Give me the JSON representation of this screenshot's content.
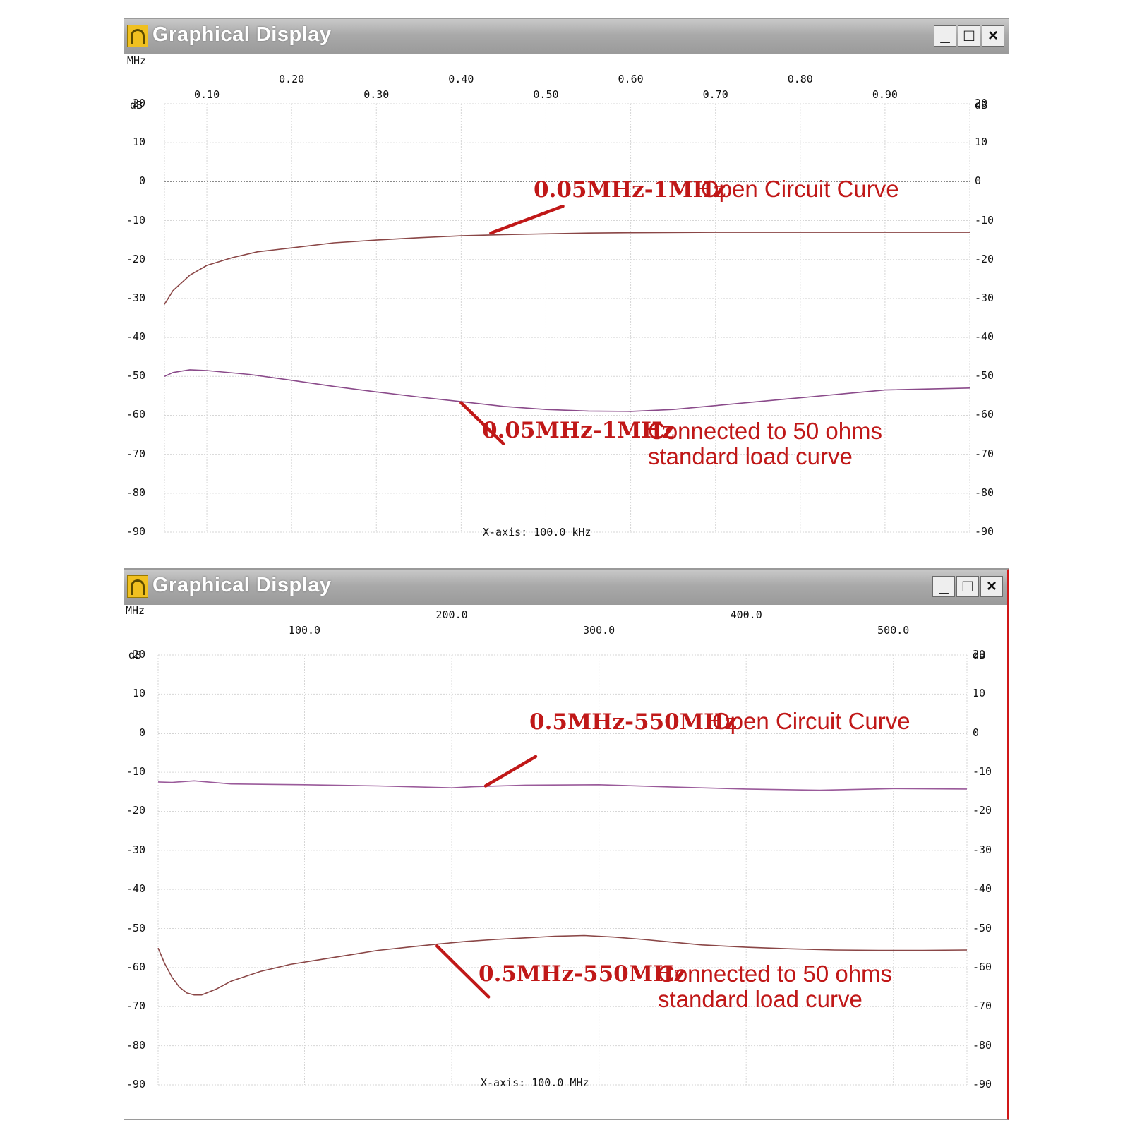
{
  "chart_data": [
    {
      "type": "line",
      "title": "Graphical Display",
      "x_unit": "MHz",
      "x_range": [
        0.05,
        1.0
      ],
      "xticks_top": [
        "0.20",
        "0.40",
        "0.60",
        "0.80"
      ],
      "xticks_bottom": [
        "0.10",
        "0.30",
        "0.50",
        "0.70",
        "0.90"
      ],
      "ylabel": "dB",
      "ylim": [
        -90,
        20
      ],
      "yticks": [
        "20",
        "10",
        "0",
        "-10",
        "-20",
        "-30",
        "-40",
        "-50",
        "-60",
        "-70",
        "-80",
        "-90"
      ],
      "xaxis_caption": "X-axis: 100.0 kHz",
      "grid": true,
      "series": [
        {
          "x": [
            0.05,
            0.06,
            0.08,
            0.1,
            0.13,
            0.16,
            0.2,
            0.25,
            0.3,
            0.35,
            0.4,
            0.45,
            0.5,
            0.55,
            0.6,
            0.7,
            0.8,
            0.9,
            1.0
          ],
          "values": [
            -31.5,
            -28,
            -24,
            -21.5,
            -19.5,
            -18,
            -17,
            -15.7,
            -15,
            -14.4,
            -13.9,
            -13.6,
            -13.4,
            -13.2,
            -13.1,
            -13.0,
            -13.0,
            -13.0,
            -13.0
          ]
        },
        {
          "x": [
            0.05,
            0.06,
            0.08,
            0.1,
            0.15,
            0.2,
            0.25,
            0.3,
            0.35,
            0.4,
            0.45,
            0.5,
            0.55,
            0.6,
            0.65,
            0.7,
            0.75,
            0.8,
            0.85,
            0.9,
            1.0
          ],
          "values": [
            -50,
            -49,
            -48.3,
            -48.5,
            -49.5,
            -51,
            -52.6,
            -54,
            -55.3,
            -56.5,
            -57.7,
            -58.5,
            -58.9,
            -59,
            -58.5,
            -57.5,
            -56.5,
            -55.5,
            -54.5,
            -53.5,
            -53
          ]
        }
      ],
      "annotations": [
        {
          "range": "0.05MHz-1MHz",
          "text": "Open Circuit Curve"
        },
        {
          "range": "0.05MHz-1MHz",
          "text": "Connected to 50 ohms",
          "text2": "standard load curve"
        }
      ]
    },
    {
      "type": "line",
      "title": "Graphical Display",
      "x_unit": "MHz",
      "x_range": [
        0.5,
        550
      ],
      "xticks_top": [
        "200.0",
        "400.0"
      ],
      "xticks_bottom": [
        "100.0",
        "300.0",
        "500.0"
      ],
      "ylabel": "dB",
      "ylim": [
        -90,
        20
      ],
      "yticks": [
        "20",
        "10",
        "0",
        "-10",
        "-20",
        "-30",
        "-40",
        "-50",
        "-60",
        "-70",
        "-80",
        "-90"
      ],
      "xaxis_caption": "X-axis: 100.0 MHz",
      "grid": true,
      "series": [
        {
          "x": [
            0.5,
            10,
            25,
            50,
            100,
            150,
            200,
            215,
            250,
            300,
            350,
            400,
            450,
            500,
            550
          ],
          "values": [
            -12.5,
            -12.6,
            -12.2,
            -13,
            -13.2,
            -13.5,
            -14,
            -13.7,
            -13.3,
            -13.2,
            -13.8,
            -14.3,
            -14.6,
            -14.2,
            -14.3
          ]
        },
        {
          "x": [
            0.5,
            5,
            10,
            15,
            20,
            25,
            30,
            40,
            50,
            70,
            90,
            110,
            130,
            150,
            170,
            190,
            210,
            230,
            250,
            270,
            290,
            310,
            330,
            350,
            370,
            400,
            430,
            460,
            490,
            520,
            550
          ],
          "values": [
            -55,
            -59,
            -62.5,
            -65,
            -66.5,
            -67,
            -67,
            -65.5,
            -63.5,
            -61,
            -59.2,
            -58,
            -56.8,
            -55.6,
            -54.8,
            -54,
            -53.3,
            -52.8,
            -52.4,
            -52,
            -51.8,
            -52.2,
            -52.8,
            -53.5,
            -54.2,
            -54.8,
            -55.2,
            -55.5,
            -55.6,
            -55.6,
            -55.5
          ]
        }
      ],
      "annotations": [
        {
          "range": "0.5MHz-550MHz",
          "text": "Open Circuit Curve"
        },
        {
          "range": "0.5MHz-550MHz",
          "text": "Connected to 50 ohms",
          "text2": "standard load curve"
        }
      ]
    }
  ],
  "window": {
    "min_glyph": "_",
    "max_glyph": "□",
    "close_glyph": "×"
  },
  "colors": {
    "curve_open_1": "#8a4646",
    "curve_load_1": "#8a4a8a",
    "curve_open_2": "#9a5a9a",
    "curve_load_2": "#8a4646",
    "annotation": "#c01818",
    "grid": "#d6d6d6"
  }
}
